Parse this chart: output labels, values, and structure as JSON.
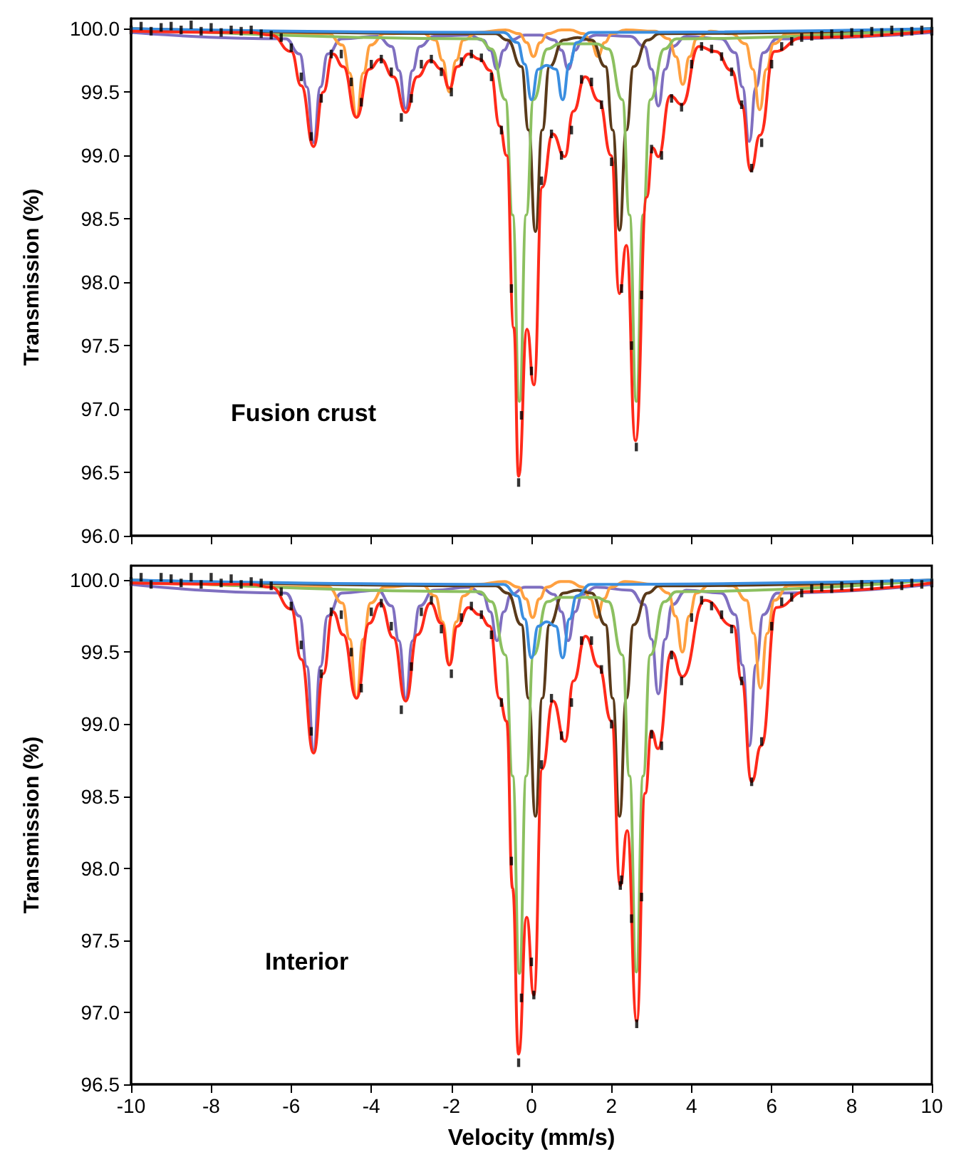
{
  "chart_data": [
    {
      "type": "line",
      "ylabel": "Transmission (%)",
      "annotations": [
        "Fusion crust"
      ],
      "xlim": [
        -10,
        10
      ],
      "xticks": [
        -10,
        -8,
        -6,
        -4,
        -2,
        0,
        2,
        4,
        6,
        8,
        10
      ],
      "ylim": [
        96,
        100.08
      ],
      "yticks": [
        {
          "value": 96,
          "label": "96.0"
        },
        96.5,
        {
          "value": 97,
          "label": "97.0"
        },
        97.5,
        {
          "value": 98,
          "label": "98.0"
        },
        98.5,
        {
          "value": 99,
          "label": "99.0"
        },
        99.5,
        {
          "value": 100,
          "label": "100.0"
        }
      ],
      "tick_labels": "y",
      "grid": false,
      "marker": "none",
      "line_style": "solid",
      "series": [
        {
          "type": "scatter",
          "marker": "square",
          "color": "#000000",
          "x": [
            -10,
            -9.75,
            -9.5,
            -9.25,
            -9,
            -8.75,
            -8.5,
            -8.25,
            -8,
            -7.75,
            -7.5,
            -7.25,
            -7,
            -6.75,
            -6.5,
            -6.25,
            -6,
            -5.75,
            -5.5,
            -5.25,
            -5,
            -4.75,
            -4.5,
            -4.25,
            -4,
            -3.75,
            -3.5,
            -3.25,
            -3,
            -2.75,
            -2.5,
            -2.25,
            -2,
            -1.75,
            -1.5,
            -1.25,
            -1,
            -0.75,
            -0.5,
            -0.32,
            -0.25,
            0,
            0.25,
            0.5,
            0.75,
            1,
            1.25,
            1.5,
            1.75,
            2,
            2.25,
            2.5,
            2.62,
            2.75,
            3,
            3.25,
            3.5,
            3.75,
            4,
            4.25,
            4.5,
            4.75,
            5,
            5.25,
            5.5,
            5.75,
            6,
            6.25,
            6.5,
            6.75,
            7,
            7.25,
            7.5,
            7.75,
            8,
            8.25,
            8.5,
            8.75,
            9,
            9.25,
            9.5,
            9.75,
            10
          ],
          "values": [
            99.99,
            100.02,
            99.98,
            100.01,
            100.02,
            99.99,
            100.03,
            99.98,
            100.01,
            99.97,
            99.99,
            99.98,
            99.99,
            99.96,
            99.95,
            99.93,
            99.85,
            99.62,
            99.15,
            99.45,
            99.8,
            99.8,
            99.58,
            99.42,
            99.72,
            99.76,
            99.66,
            99.3,
            99.45,
            99.72,
            99.76,
            99.66,
            99.5,
            99.74,
            99.8,
            99.77,
            99.62,
            99.2,
            97.95,
            96.42,
            96.95,
            97.3,
            98.8,
            99.17,
            99.0,
            99.2,
            99.6,
            99.58,
            99.4,
            98.95,
            97.95,
            97.5,
            96.7,
            97.9,
            99.05,
            99.0,
            99.45,
            99.38,
            99.72,
            99.86,
            99.84,
            99.78,
            99.66,
            99.4,
            98.9,
            99.1,
            99.72,
            99.86,
            99.9,
            99.93,
            99.94,
            99.95,
            99.96,
            99.95,
            99.97,
            99.96,
            99.98,
            99.97,
            99.99,
            99.97,
            99.98,
            99.99,
            99.98
          ]
        },
        {
          "color": "#7f6fc0",
          "x": [
            -10,
            -6.14,
            -5.79,
            -5.61,
            -5.44,
            -5.27,
            -5.09,
            -4.74,
            -3.84,
            -3.49,
            -3.31,
            -3.14,
            -2.97,
            -2.79,
            -2.44,
            -1.56,
            -1.21,
            -1.03,
            -0.86,
            -0.69,
            -0.51,
            -0.16,
            0.22,
            0.57,
            0.75,
            0.92,
            1.09,
            1.27,
            1.62,
            2.47,
            2.82,
            3.0,
            3.17,
            3.34,
            3.52,
            3.87,
            4.74,
            5.09,
            5.27,
            5.44,
            5.61,
            5.79,
            6.14,
            10
          ],
          "values": [
            99.97,
            99.92,
            99.8,
            99.54,
            99.1,
            99.54,
            99.8,
            99.92,
            99.94,
            99.86,
            99.67,
            99.37,
            99.67,
            99.86,
            99.94,
            99.95,
            99.91,
            99.83,
            99.68,
            99.83,
            99.91,
            99.95,
            99.95,
            99.91,
            99.83,
            99.68,
            99.83,
            99.91,
            99.95,
            99.94,
            99.86,
            99.68,
            99.39,
            99.68,
            99.86,
            99.94,
            99.92,
            99.81,
            99.54,
            99.11,
            99.54,
            99.81,
            99.92,
            99.97
          ]
        },
        {
          "color": "#ffa040",
          "x": [
            -10,
            -5.07,
            -4.72,
            -4.54,
            -4.37,
            -4.2,
            -4.02,
            -3.67,
            -2.75,
            -2.4,
            -2.22,
            -2.05,
            -1.88,
            -1.7,
            -1.35,
            -0.65,
            -0.3,
            -0.12,
            0.05,
            0.22,
            0.4,
            0.75,
            0.96,
            1.31,
            1.49,
            1.66,
            1.83,
            2.01,
            2.36,
            3.08,
            3.43,
            3.61,
            3.78,
            3.95,
            4.13,
            4.48,
            5.0,
            5.35,
            5.53,
            5.7,
            5.87,
            6.05,
            6.4,
            10
          ],
          "values": [
            100.0,
            99.96,
            99.87,
            99.65,
            99.3,
            99.65,
            99.87,
            99.96,
            99.97,
            99.91,
            99.75,
            99.5,
            99.75,
            99.91,
            99.97,
            99.99,
            99.96,
            99.89,
            99.78,
            99.89,
            99.96,
            99.99,
            99.99,
            99.96,
            99.89,
            99.78,
            99.89,
            99.96,
            99.99,
            99.98,
            99.92,
            99.78,
            99.56,
            99.78,
            99.92,
            99.98,
            99.96,
            99.88,
            99.68,
            99.36,
            99.68,
            99.88,
            99.96,
            100.0
          ]
        },
        {
          "color": "#5a3a1a",
          "x": [
            -10,
            -0.9,
            -0.6,
            -0.25,
            -0.07,
            0.1,
            0.27,
            0.45,
            0.8,
            1.15,
            1.5,
            1.85,
            2.03,
            2.2,
            2.37,
            2.55,
            2.9,
            3.2,
            10
          ],
          "values": [
            100.0,
            99.96,
            99.91,
            99.7,
            99.2,
            98.4,
            99.2,
            99.7,
            99.91,
            99.93,
            99.91,
            99.7,
            99.2,
            98.41,
            99.2,
            99.7,
            99.91,
            99.96,
            100.0
          ]
        },
        {
          "color": "#8cc060",
          "x": [
            -10,
            -1.3,
            -1.0,
            -0.65,
            -0.47,
            -0.3,
            -0.13,
            0.05,
            0.4,
            0.7,
            1.16,
            1.62,
            1.92,
            2.27,
            2.45,
            2.62,
            2.79,
            2.97,
            3.32,
            3.62,
            10
          ],
          "values": [
            100.0,
            99.92,
            99.84,
            99.44,
            98.53,
            97.06,
            98.53,
            99.44,
            99.84,
            99.88,
            99.88,
            99.88,
            99.84,
            99.44,
            98.53,
            97.06,
            98.53,
            99.44,
            99.84,
            99.92,
            100.0
          ]
        },
        {
          "color": "#3a8ee0",
          "x": [
            -10,
            -0.7,
            -0.35,
            -0.17,
            0,
            0.17,
            0.38,
            0.61,
            0.78,
            0.95,
            1.13,
            1.48,
            10
          ],
          "values": [
            100.0,
            99.97,
            99.89,
            99.72,
            99.44,
            99.68,
            99.71,
            99.68,
            99.44,
            99.72,
            99.89,
            99.97,
            100.0
          ]
        },
        {
          "color": "#ff2a1a",
          "x": [
            -10,
            -7,
            -6.5,
            -6.0,
            -5.75,
            -5.44,
            -5.2,
            -4.96,
            -4.7,
            -4.37,
            -4.05,
            -3.77,
            -3.45,
            -3.14,
            -2.85,
            -2.52,
            -2.25,
            -2.05,
            -1.85,
            -1.57,
            -1.3,
            -1.03,
            -0.79,
            -0.62,
            -0.44,
            -0.32,
            -0.11,
            0.06,
            0.27,
            0.53,
            0.83,
            1.05,
            1.34,
            1.69,
            1.99,
            2.2,
            2.37,
            2.6,
            2.88,
            3.03,
            3.17,
            3.47,
            3.76,
            4.18,
            4.6,
            5.0,
            5.25,
            5.48,
            5.71,
            6.07,
            6.78,
            10
          ],
          "values": [
            99.98,
            99.97,
            99.95,
            99.82,
            99.55,
            99.07,
            99.5,
            99.8,
            99.7,
            99.3,
            99.68,
            99.76,
            99.62,
            99.34,
            99.62,
            99.75,
            99.68,
            99.53,
            99.7,
            99.8,
            99.76,
            99.67,
            99.23,
            99.0,
            97.64,
            96.47,
            97.63,
            97.19,
            98.75,
            99.17,
            98.99,
            99.35,
            99.62,
            99.43,
            99.0,
            97.91,
            98.29,
            96.75,
            98.67,
            99.06,
            98.99,
            99.47,
            99.4,
            99.86,
            99.82,
            99.67,
            99.4,
            98.88,
            99.16,
            99.82,
            99.93,
            99.98
          ]
        }
      ]
    },
    {
      "type": "line",
      "xlabel": "Velocity (mm/s)",
      "ylabel": "Transmission (%)",
      "annotations": [
        "Interior"
      ],
      "xlim": [
        -10,
        10
      ],
      "xticks": [
        -10,
        -8,
        -6,
        -4,
        -2,
        0,
        2,
        4,
        6,
        8,
        10
      ],
      "ylim": [
        96.5,
        100.1
      ],
      "yticks": [
        96.5,
        {
          "value": 97,
          "label": "97.0"
        },
        97.5,
        {
          "value": 98,
          "label": "98.0"
        },
        98.5,
        {
          "value": 99,
          "label": "99.0"
        },
        99.5,
        {
          "value": 100,
          "label": "100.0"
        }
      ],
      "grid": false,
      "marker": "none",
      "line_style": "solid",
      "series": [
        {
          "type": "scatter",
          "marker": "square",
          "color": "#000000",
          "x": [
            -10,
            -9.75,
            -9.5,
            -9.25,
            -9,
            -8.75,
            -8.5,
            -8.25,
            -8,
            -7.75,
            -7.5,
            -7.25,
            -7,
            -6.75,
            -6.5,
            -6.25,
            -6,
            -5.75,
            -5.5,
            -5.25,
            -5,
            -4.75,
            -4.5,
            -4.25,
            -4,
            -3.75,
            -3.5,
            -3.25,
            -3,
            -2.75,
            -2.5,
            -2.25,
            -2,
            -1.75,
            -1.5,
            -1.25,
            -1,
            -0.75,
            -0.5,
            -0.32,
            -0.25,
            0,
            0.06,
            0.25,
            0.5,
            0.75,
            1,
            1.25,
            1.5,
            1.75,
            2,
            2.22,
            2.25,
            2.5,
            2.63,
            2.75,
            3,
            3.25,
            3.5,
            3.75,
            4,
            4.25,
            4.5,
            4.75,
            5,
            5.25,
            5.5,
            5.75,
            6,
            6.25,
            6.5,
            6.75,
            7,
            7.25,
            7.5,
            7.75,
            8,
            8.25,
            8.5,
            8.75,
            9,
            9.25,
            9.5,
            9.75,
            10
          ],
          "values": [
            99.99,
            100.02,
            99.97,
            100.02,
            100.01,
            99.98,
            100.02,
            99.97,
            100.02,
            99.98,
            100.01,
            99.97,
            99.99,
            99.98,
            99.96,
            99.92,
            99.82,
            99.55,
            98.95,
            99.35,
            99.78,
            99.76,
            99.5,
            99.25,
            99.78,
            99.84,
            99.68,
            99.1,
            99.4,
            99.78,
            99.86,
            99.66,
            99.35,
            99.74,
            99.82,
            99.76,
            99.62,
            99.15,
            98.05,
            96.65,
            97.1,
            97.35,
            97.12,
            98.72,
            99.18,
            98.92,
            99.15,
            99.58,
            99.58,
            99.38,
            99.0,
            97.88,
            97.92,
            97.65,
            96.92,
            97.8,
            98.93,
            98.85,
            99.48,
            99.3,
            99.74,
            99.86,
            99.82,
            99.76,
            99.66,
            99.3,
            98.6,
            98.88,
            99.68,
            99.85,
            99.88,
            99.91,
            99.94,
            99.95,
            99.94,
            99.96,
            99.95,
            99.97,
            99.96,
            99.97,
            99.98,
            99.96,
            99.98,
            99.97,
            99.98
          ]
        },
        {
          "color": "#7f6fc0",
          "x": [
            -10,
            -6.14,
            -5.79,
            -5.61,
            -5.44,
            -5.27,
            -5.09,
            -4.74,
            -3.84,
            -3.49,
            -3.31,
            -3.14,
            -2.97,
            -2.79,
            -2.44,
            -1.56,
            -1.21,
            -1.03,
            -0.86,
            -0.69,
            -0.51,
            -0.16,
            0.22,
            0.57,
            0.75,
            0.92,
            1.09,
            1.27,
            1.62,
            2.47,
            2.82,
            3.0,
            3.17,
            3.34,
            3.52,
            3.87,
            4.74,
            5.09,
            5.27,
            5.44,
            5.61,
            5.79,
            6.14,
            10
          ],
          "values": [
            99.97,
            99.91,
            99.75,
            99.4,
            98.82,
            99.4,
            99.75,
            99.91,
            99.93,
            99.82,
            99.58,
            99.18,
            99.58,
            99.82,
            99.93,
            99.95,
            99.9,
            99.78,
            99.58,
            99.78,
            99.9,
            99.95,
            99.95,
            99.9,
            99.78,
            99.58,
            99.78,
            99.9,
            99.95,
            99.93,
            99.83,
            99.59,
            99.21,
            99.59,
            99.83,
            99.93,
            99.91,
            99.76,
            99.41,
            98.85,
            99.41,
            99.76,
            99.91,
            99.97
          ]
        },
        {
          "color": "#ffa040",
          "x": [
            -10,
            -5.07,
            -4.72,
            -4.54,
            -4.37,
            -4.2,
            -4.02,
            -3.67,
            -2.75,
            -2.4,
            -2.22,
            -2.05,
            -1.88,
            -1.7,
            -1.35,
            -0.67,
            -0.32,
            -0.14,
            0.03,
            0.2,
            0.38,
            0.73,
            0.94,
            1.29,
            1.47,
            1.64,
            1.81,
            1.99,
            2.34,
            3.07,
            3.42,
            3.6,
            3.77,
            3.94,
            4.12,
            4.47,
            5.02,
            5.37,
            5.55,
            5.72,
            5.89,
            6.07,
            6.42,
            10
          ],
          "values": [
            100.0,
            99.95,
            99.84,
            99.59,
            99.18,
            99.59,
            99.84,
            99.95,
            99.97,
            99.89,
            99.71,
            99.42,
            99.71,
            99.89,
            99.97,
            99.99,
            99.95,
            99.87,
            99.74,
            99.87,
            99.95,
            99.99,
            99.99,
            99.95,
            99.87,
            99.74,
            99.87,
            99.95,
            99.99,
            99.97,
            99.91,
            99.75,
            99.5,
            99.75,
            99.91,
            99.97,
            99.96,
            99.86,
            99.63,
            99.25,
            99.63,
            99.86,
            99.96,
            100.0
          ]
        },
        {
          "color": "#5a3a1a",
          "x": [
            -10,
            -0.9,
            -0.6,
            -0.25,
            -0.07,
            0.1,
            0.27,
            0.45,
            0.8,
            1.15,
            1.5,
            1.85,
            2.03,
            2.2,
            2.37,
            2.55,
            2.9,
            3.2,
            10
          ],
          "values": [
            100.0,
            99.96,
            99.91,
            99.69,
            99.18,
            98.36,
            99.18,
            99.69,
            99.91,
            99.93,
            99.91,
            99.69,
            99.18,
            98.36,
            99.18,
            99.69,
            99.91,
            99.96,
            100.0
          ]
        },
        {
          "color": "#8cc060",
          "x": [
            -10,
            -1.3,
            -1.0,
            -0.65,
            -0.47,
            -0.3,
            -0.13,
            0.05,
            0.4,
            0.7,
            1.16,
            1.62,
            1.92,
            2.27,
            2.45,
            2.62,
            2.79,
            2.97,
            3.32,
            3.62,
            10
          ],
          "values": [
            100.0,
            99.92,
            99.85,
            99.48,
            98.64,
            97.27,
            98.64,
            99.48,
            99.85,
            99.88,
            99.88,
            99.88,
            99.85,
            99.48,
            98.64,
            97.28,
            98.64,
            99.48,
            99.85,
            99.92,
            100.0
          ]
        },
        {
          "color": "#3a8ee0",
          "x": [
            -10,
            -0.7,
            -0.35,
            -0.17,
            0,
            0.17,
            0.38,
            0.61,
            0.78,
            0.95,
            1.13,
            1.48,
            10
          ],
          "values": [
            100.0,
            99.97,
            99.89,
            99.73,
            99.46,
            99.68,
            99.71,
            99.68,
            99.46,
            99.73,
            99.89,
            99.97,
            100.0
          ]
        },
        {
          "color": "#ff2a1a",
          "x": [
            -10,
            -7,
            -6.5,
            -6.0,
            -5.75,
            -5.44,
            -5.2,
            -4.96,
            -4.7,
            -4.37,
            -4.05,
            -3.77,
            -3.45,
            -3.14,
            -2.85,
            -2.52,
            -2.25,
            -2.05,
            -1.85,
            -1.57,
            -1.3,
            -1.04,
            -0.8,
            -0.62,
            -0.47,
            -0.32,
            -0.12,
            0.06,
            0.27,
            0.54,
            0.84,
            1.05,
            1.35,
            1.68,
            2.0,
            2.22,
            2.39,
            2.63,
            2.84,
            3.0,
            3.16,
            3.5,
            3.77,
            4.33,
            5.05,
            5.25,
            5.5,
            5.74,
            6.12,
            6.84,
            10
          ],
          "values": [
            99.98,
            99.97,
            99.95,
            99.8,
            99.45,
            98.8,
            99.35,
            99.78,
            99.62,
            99.18,
            99.7,
            99.84,
            99.6,
            99.16,
            99.62,
            99.84,
            99.7,
            99.41,
            99.68,
            99.81,
            99.76,
            99.68,
            99.18,
            99.02,
            97.86,
            96.71,
            97.66,
            97.12,
            98.69,
            99.16,
            98.88,
            99.3,
            99.61,
            99.4,
            99.02,
            97.88,
            98.26,
            96.94,
            98.52,
            98.95,
            98.83,
            99.5,
            99.33,
            99.86,
            99.68,
            99.3,
            98.6,
            98.85,
            99.81,
            99.92,
            99.98
          ]
        }
      ]
    }
  ]
}
